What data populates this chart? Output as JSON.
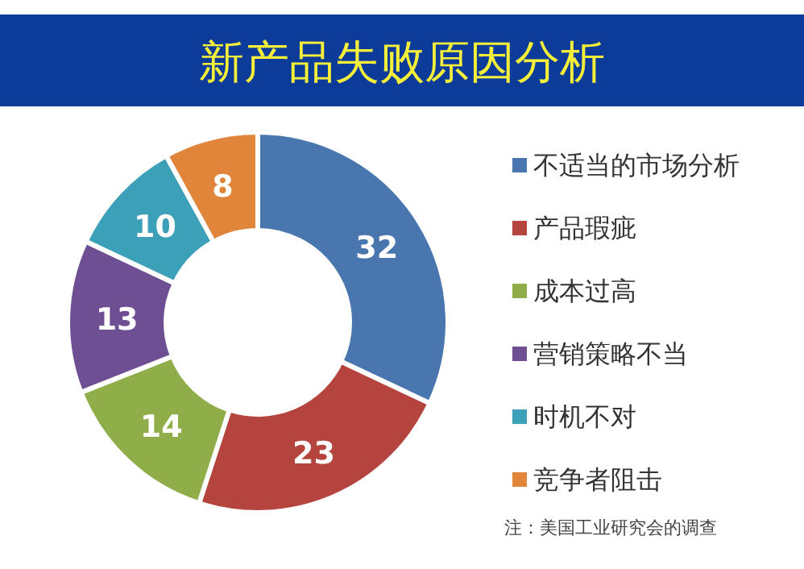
{
  "chart_data": {
    "type": "donut",
    "title": "新产品失败原因分析",
    "categories": [
      "不适当的市场分析",
      "产品瑕疵",
      "成本过高",
      "营销策略不当",
      "时机不对",
      "竞争者阻击"
    ],
    "values": [
      32,
      23,
      14,
      13,
      10,
      8
    ],
    "colors": [
      "#4a76b0",
      "#b5443e",
      "#8fae4a",
      "#6f4f93",
      "#3ca0b8",
      "#e0853a"
    ],
    "data_labels": true,
    "legend": "right",
    "annotations": [
      "注：美国工业研究会的调查"
    ]
  }
}
